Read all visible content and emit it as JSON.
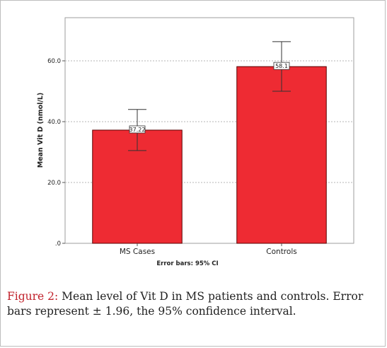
{
  "chart_data": {
    "type": "bar",
    "categories": [
      "MS Cases",
      "Controls"
    ],
    "values": [
      37.22,
      58.1
    ],
    "value_labels": [
      "37.22",
      "58.1"
    ],
    "ci_lower": [
      30.5,
      50.0
    ],
    "ci_upper": [
      44.0,
      66.3
    ],
    "ylabel": "Mean Vit D (nmol/L)",
    "xlabel": "",
    "note": "Error bars: 95% CI",
    "yticks": [
      0,
      20,
      40,
      60
    ],
    "ytick_labels": [
      ".0",
      "20.0",
      "40.0",
      "60.0"
    ],
    "ylim": [
      0,
      74
    ],
    "grid": true,
    "bar_color": "#ee2b33",
    "bar_edge_color": "#5a0000"
  },
  "caption": {
    "label": "Figure 2:",
    "text": " Mean level of Vit D in MS patients and controls. Error bars represent ± 1.96, the 95% confidence interval."
  }
}
